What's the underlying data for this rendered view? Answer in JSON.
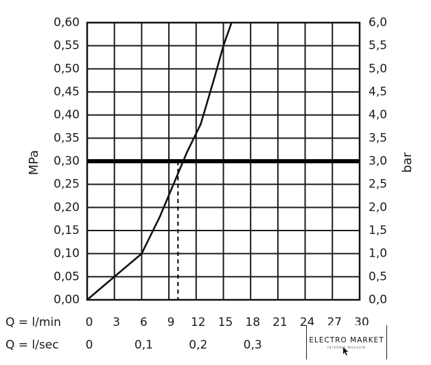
{
  "chart_data": {
    "type": "line",
    "title": "",
    "ylabel_left": "MPa",
    "ylabel_right": "bar",
    "ylim": [
      0,
      0.6
    ],
    "y_ticks_left": [
      "0,00",
      "0,05",
      "0,10",
      "0,15",
      "0,20",
      "0,25",
      "0,30",
      "0,35",
      "0,40",
      "0,45",
      "0,50",
      "0,55",
      "0,60"
    ],
    "y_ticks_right": [
      "0,0",
      "0,5",
      "1,0",
      "1,5",
      "2,0",
      "2,5",
      "3,0",
      "3,5",
      "4,0",
      "4,5",
      "5,0",
      "5,5",
      "6,0"
    ],
    "xlim": [
      0,
      30
    ],
    "x_row1_label": "Q = l/min",
    "x_row1_ticks": [
      {
        "v": 0,
        "t": "0"
      },
      {
        "v": 3,
        "t": "3"
      },
      {
        "v": 6,
        "t": "6"
      },
      {
        "v": 9,
        "t": "9"
      },
      {
        "v": 12,
        "t": "12"
      },
      {
        "v": 15,
        "t": "15"
      },
      {
        "v": 18,
        "t": "18"
      },
      {
        "v": 21,
        "t": "21"
      },
      {
        "v": 24,
        "t": "24"
      },
      {
        "v": 27,
        "t": "27"
      },
      {
        "v": 30,
        "t": "30"
      }
    ],
    "x_row2_label": "Q = l/sec",
    "x_row2_ticks": [
      {
        "v": 0,
        "t": "0"
      },
      {
        "v": 6,
        "t": "0,1"
      },
      {
        "v": 12,
        "t": "0,2"
      },
      {
        "v": 18,
        "t": "0,3"
      }
    ],
    "grid": true,
    "series": [
      {
        "x": [
          0,
          3,
          6,
          8,
          9.5,
          11,
          12.5,
          14,
          15,
          15.9
        ],
        "y": [
          0,
          0.05,
          0.1,
          0.18,
          0.25,
          0.32,
          0.38,
          0.48,
          0.55,
          0.6
        ],
        "color": "#111111"
      }
    ],
    "reference": {
      "y": 0.3,
      "x_intersect": 10,
      "color": "#000000"
    }
  },
  "watermark": {
    "text": "ELECTRO MARKET",
    "subtext": "INTERNET-MAGAZIN"
  }
}
